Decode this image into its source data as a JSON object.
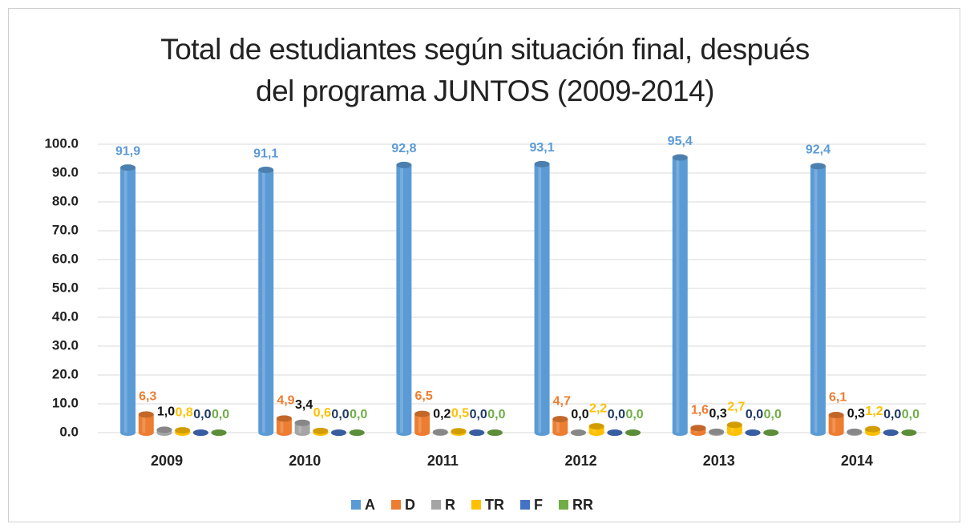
{
  "chart_data": {
    "type": "bar3d",
    "title": "Total de estudiantes según situación final, después del programa JUNTOS (2009-2014)",
    "categories": [
      "2009",
      "2010",
      "2011",
      "2012",
      "2013",
      "2014"
    ],
    "series": [
      {
        "name": "A",
        "color": "#5b9bd5",
        "values": [
          91.9,
          91.1,
          92.8,
          93.1,
          95.4,
          92.4
        ],
        "value_labels": [
          "91,9",
          "91,1",
          "92,8",
          "93,1",
          "95,4",
          "92,4"
        ]
      },
      {
        "name": "D",
        "color": "#ed7d31",
        "values": [
          6.3,
          4.9,
          6.5,
          4.7,
          1.6,
          6.1
        ],
        "value_labels": [
          "6,3",
          "4,9",
          "6,5",
          "4,7",
          "1,6",
          "6,1"
        ]
      },
      {
        "name": "R",
        "color": "#a5a5a5",
        "values": [
          1.0,
          3.4,
          0.2,
          0.0,
          0.3,
          0.3
        ],
        "value_labels": [
          "1,0",
          "3,4",
          "0,2",
          "0,0",
          "0,3",
          "0,3"
        ]
      },
      {
        "name": "TR",
        "color": "#ffc000",
        "values": [
          0.8,
          0.6,
          0.5,
          2.2,
          2.7,
          1.2
        ],
        "value_labels": [
          "0,8",
          "0,6",
          "0,5",
          "2,2",
          "2,7",
          "1,2"
        ]
      },
      {
        "name": "F",
        "color": "#4472c4",
        "values": [
          0.0,
          0.0,
          0.0,
          0.0,
          0.0,
          0.0
        ],
        "value_labels": [
          "0,0",
          "0,0",
          "0,0",
          "0,0",
          "0,0",
          "0,0"
        ]
      },
      {
        "name": "RR",
        "color": "#70ad47",
        "values": [
          0.0,
          0.0,
          0.0,
          0.0,
          0.0,
          0.0
        ],
        "value_labels": [
          "0,0",
          "0,0",
          "0,0",
          "0,0",
          "0,0",
          "0,0"
        ]
      }
    ],
    "ylim": [
      0,
      100
    ],
    "yticks": [
      {
        "value": 0,
        "label": "0.0"
      },
      {
        "value": 10,
        "label": "10.0"
      },
      {
        "value": 20,
        "label": "20.0"
      },
      {
        "value": 30,
        "label": "30.0"
      },
      {
        "value": 40,
        "label": "40.0"
      },
      {
        "value": 50,
        "label": "50.0"
      },
      {
        "value": 60,
        "label": "60.0"
      },
      {
        "value": 70,
        "label": "70.0"
      },
      {
        "value": 80,
        "label": "80.0"
      },
      {
        "value": 90,
        "label": "90.0"
      },
      {
        "value": 100,
        "label": "100.0"
      }
    ],
    "grid": true,
    "legend": "bottom"
  }
}
